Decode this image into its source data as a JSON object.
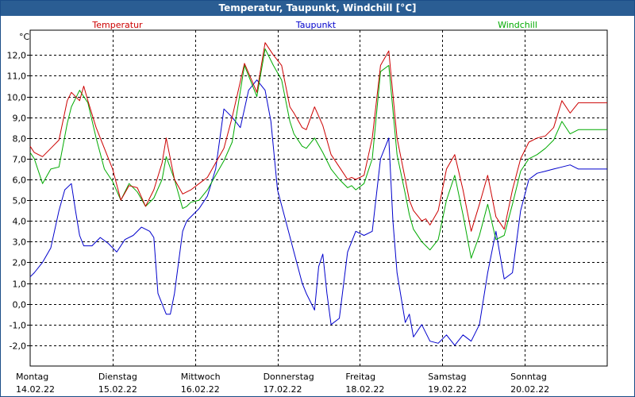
{
  "window": {
    "title": "Temperatur, Taupunkt, Windchill [°C]"
  },
  "colors": {
    "temperatur": "#cc0000",
    "taupunkt": "#0000cc",
    "windchill": "#00aa00",
    "titlebar": "#2a5d93"
  },
  "chart_data": {
    "type": "line",
    "title": "Temperatur, Taupunkt, Windchill [°C]",
    "ylabel": "°C",
    "xlabel": "",
    "ylim": [
      -3.0,
      13.2
    ],
    "xlim": [
      0,
      7
    ],
    "x_unit": "days since 14.02.22 00:00",
    "yticks": [
      12.0,
      11.0,
      10.0,
      9.0,
      8.0,
      7.0,
      6.0,
      5.0,
      4.0,
      3.0,
      2.0,
      1.0,
      0.0,
      -1.0,
      -2.0
    ],
    "ytick_labels": [
      "12,0",
      "11,0",
      "10,0",
      "9,0",
      "8,0",
      "7,0",
      "6,0",
      "5,0",
      "4,0",
      "3,0",
      "2,0",
      "1,0",
      "0,0",
      "-1,0",
      "-2,0"
    ],
    "days": [
      {
        "weekday": "Montag",
        "date": "14.02.22"
      },
      {
        "weekday": "Dienstag",
        "date": "15.02.22"
      },
      {
        "weekday": "Mittwoch",
        "date": "16.02.22"
      },
      {
        "weekday": "Donnerstag",
        "date": "17.02.22"
      },
      {
        "weekday": "Freitag",
        "date": "18.02.22"
      },
      {
        "weekday": "Samstag",
        "date": "19.02.22"
      },
      {
        "weekday": "Sonntag",
        "date": "20.02.22"
      }
    ],
    "series": [
      {
        "name": "Temperatur",
        "x": [
          0.0,
          0.05,
          0.15,
          0.25,
          0.35,
          0.45,
          0.5,
          0.6,
          0.65,
          0.7,
          0.8,
          0.9,
          1.0,
          1.1,
          1.2,
          1.3,
          1.4,
          1.5,
          1.6,
          1.65,
          1.75,
          1.85,
          1.9,
          1.95,
          2.05,
          2.15,
          2.25,
          2.35,
          2.45,
          2.6,
          2.75,
          2.85,
          2.95,
          3.05,
          3.1,
          3.15,
          3.2,
          3.3,
          3.35,
          3.45,
          3.55,
          3.65,
          3.75,
          3.85,
          3.9,
          3.95,
          4.05,
          4.15,
          4.25,
          4.35,
          4.45,
          4.55,
          4.6,
          4.65,
          4.75,
          4.8,
          4.85,
          4.95,
          5.05,
          5.15,
          5.25,
          5.35,
          5.45,
          5.55,
          5.65,
          5.75,
          5.85,
          5.95,
          6.05,
          6.15,
          6.25,
          6.35,
          6.45,
          6.55,
          6.65,
          6.75,
          6.85,
          6.92,
          7.0
        ],
        "y": [
          7.6,
          7.3,
          7.1,
          7.5,
          7.9,
          9.8,
          10.2,
          9.8,
          10.5,
          9.8,
          8.5,
          7.5,
          6.5,
          5.0,
          5.7,
          5.6,
          4.7,
          5.5,
          6.8,
          8.0,
          6.0,
          5.3,
          5.4,
          5.5,
          5.8,
          6.1,
          6.8,
          7.5,
          9.0,
          11.6,
          10.2,
          12.6,
          12.0,
          11.5,
          10.5,
          9.5,
          9.2,
          8.5,
          8.4,
          9.5,
          8.6,
          7.2,
          6.6,
          6.0,
          6.1,
          6.0,
          6.2,
          8.0,
          11.5,
          12.2,
          8.0,
          6.0,
          5.0,
          4.5,
          4.0,
          4.1,
          3.8,
          4.5,
          6.5,
          7.2,
          5.5,
          3.5,
          4.8,
          6.2,
          4.2,
          3.6,
          5.5,
          7.0,
          7.8,
          8.0,
          8.1,
          8.5,
          9.8,
          9.2,
          9.7,
          9.7,
          9.7,
          9.7,
          9.7
        ]
      },
      {
        "name": "Taupunkt",
        "x": [
          0.0,
          0.05,
          0.15,
          0.25,
          0.35,
          0.42,
          0.5,
          0.55,
          0.6,
          0.65,
          0.75,
          0.85,
          0.95,
          1.05,
          1.15,
          1.25,
          1.35,
          1.45,
          1.5,
          1.55,
          1.65,
          1.7,
          1.75,
          1.85,
          1.9,
          1.95,
          2.05,
          2.15,
          2.25,
          2.35,
          2.45,
          2.55,
          2.65,
          2.75,
          2.85,
          2.92,
          3.0,
          3.1,
          3.2,
          3.3,
          3.35,
          3.45,
          3.5,
          3.55,
          3.6,
          3.65,
          3.75,
          3.85,
          3.95,
          4.05,
          4.15,
          4.25,
          4.35,
          4.4,
          4.45,
          4.55,
          4.6,
          4.65,
          4.75,
          4.85,
          4.95,
          5.05,
          5.15,
          5.25,
          5.35,
          5.45,
          5.55,
          5.65,
          5.75,
          5.85,
          5.95,
          6.05,
          6.15,
          6.25,
          6.35,
          6.45,
          6.55,
          6.65,
          6.75,
          6.85,
          7.0
        ],
        "y": [
          1.3,
          1.5,
          2.0,
          2.7,
          4.5,
          5.5,
          5.8,
          4.5,
          3.3,
          2.8,
          2.8,
          3.2,
          2.9,
          2.5,
          3.1,
          3.3,
          3.7,
          3.5,
          3.2,
          0.5,
          -0.5,
          -0.5,
          0.5,
          3.5,
          4.0,
          4.2,
          4.6,
          5.2,
          6.5,
          9.4,
          9.0,
          8.5,
          10.3,
          10.8,
          10.3,
          8.8,
          5.5,
          4.0,
          2.5,
          1.0,
          0.5,
          -0.3,
          1.8,
          2.4,
          0.5,
          -1.0,
          -0.7,
          2.5,
          3.5,
          3.3,
          3.5,
          7.0,
          8.0,
          4.0,
          1.5,
          -0.9,
          -0.5,
          -1.6,
          -1.0,
          -1.8,
          -1.9,
          -1.5,
          -2.0,
          -1.5,
          -1.8,
          -1.0,
          1.5,
          3.5,
          1.2,
          1.5,
          4.5,
          6.0,
          6.3,
          6.4,
          6.5,
          6.6,
          6.7,
          6.5,
          6.5,
          6.5,
          6.5
        ]
      },
      {
        "name": "Windchill",
        "x": [
          0.0,
          0.05,
          0.15,
          0.25,
          0.35,
          0.45,
          0.5,
          0.6,
          0.65,
          0.7,
          0.8,
          0.9,
          1.0,
          1.1,
          1.2,
          1.3,
          1.4,
          1.5,
          1.6,
          1.65,
          1.75,
          1.85,
          1.9,
          1.95,
          2.05,
          2.15,
          2.25,
          2.35,
          2.45,
          2.6,
          2.75,
          2.85,
          2.95,
          3.05,
          3.1,
          3.15,
          3.2,
          3.3,
          3.35,
          3.45,
          3.55,
          3.65,
          3.75,
          3.85,
          3.9,
          3.95,
          4.05,
          4.15,
          4.25,
          4.35,
          4.45,
          4.55,
          4.6,
          4.65,
          4.75,
          4.8,
          4.85,
          4.95,
          5.05,
          5.15,
          5.25,
          5.35,
          5.45,
          5.55,
          5.65,
          5.75,
          5.85,
          5.95,
          6.05,
          6.15,
          6.25,
          6.35,
          6.45,
          6.55,
          6.65,
          6.75,
          6.85,
          6.92,
          7.0
        ],
        "y": [
          7.3,
          7.0,
          5.8,
          6.5,
          6.6,
          8.7,
          9.5,
          10.3,
          10.0,
          9.7,
          8.0,
          6.5,
          5.9,
          5.0,
          5.8,
          5.4,
          4.7,
          5.1,
          6.0,
          7.1,
          6.0,
          4.6,
          4.7,
          4.9,
          5.0,
          5.5,
          6.2,
          6.9,
          7.8,
          11.5,
          10.0,
          12.3,
          11.5,
          10.8,
          9.8,
          8.8,
          8.2,
          7.6,
          7.5,
          8.0,
          7.3,
          6.5,
          6.0,
          5.6,
          5.7,
          5.5,
          5.8,
          7.0,
          11.2,
          11.5,
          7.2,
          5.3,
          4.3,
          3.6,
          3.0,
          2.8,
          2.6,
          3.1,
          5.0,
          6.2,
          4.3,
          2.2,
          3.3,
          4.8,
          3.1,
          3.3,
          4.8,
          6.4,
          7.0,
          7.2,
          7.5,
          7.9,
          8.8,
          8.2,
          8.4,
          8.4,
          8.4,
          8.4,
          8.4
        ]
      }
    ]
  }
}
